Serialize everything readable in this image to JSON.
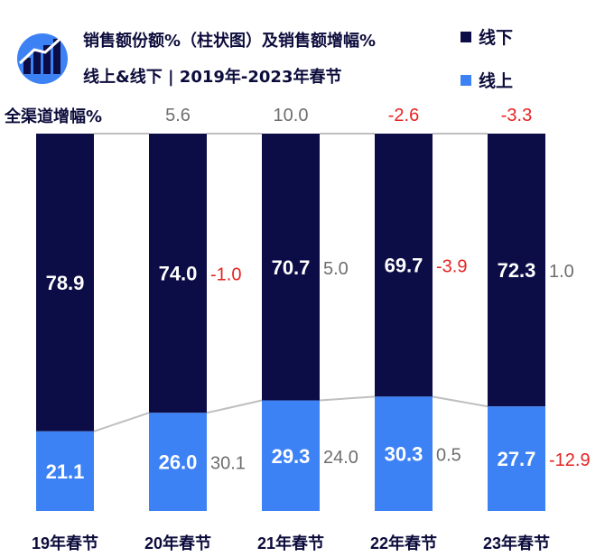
{
  "header": {
    "title_line1": "销售额份额%（柱状图）及销售额增幅%",
    "title_line2": "线上&线下 | 2019年-2023年春节",
    "icon": "rising-bar-chart-icon"
  },
  "legend": [
    {
      "label": "线下",
      "color": "#0c0c46"
    },
    {
      "label": "线上",
      "color": "#3d82f5"
    }
  ],
  "colors": {
    "offline": "#0c0c46",
    "online": "#3d82f5",
    "negative": "#e62323",
    "neutral": "#6e6e6e",
    "connector": "#bfbfbf"
  },
  "chart_data": {
    "type": "bar",
    "stacked": true,
    "categories": [
      "19年春节",
      "20年春节",
      "21年春节",
      "22年春节",
      "23年春节"
    ],
    "series": [
      {
        "name": "线上",
        "values": [
          21.1,
          26.0,
          29.3,
          30.3,
          27.7
        ]
      },
      {
        "name": "线下",
        "values": [
          78.9,
          74.0,
          70.7,
          69.7,
          72.3
        ]
      }
    ],
    "growth": {
      "label": "全渠道增幅%",
      "total": [
        null,
        "5.6",
        "10.0",
        "-2.6",
        "-3.3"
      ],
      "offline": [
        null,
        "-1.0",
        "5.0",
        "-3.9",
        "1.0"
      ],
      "online": [
        null,
        "30.1",
        "24.0",
        "0.5",
        "-12.9"
      ]
    },
    "ylim": [
      0,
      100
    ],
    "legend_position": "top-right",
    "grid": false
  }
}
